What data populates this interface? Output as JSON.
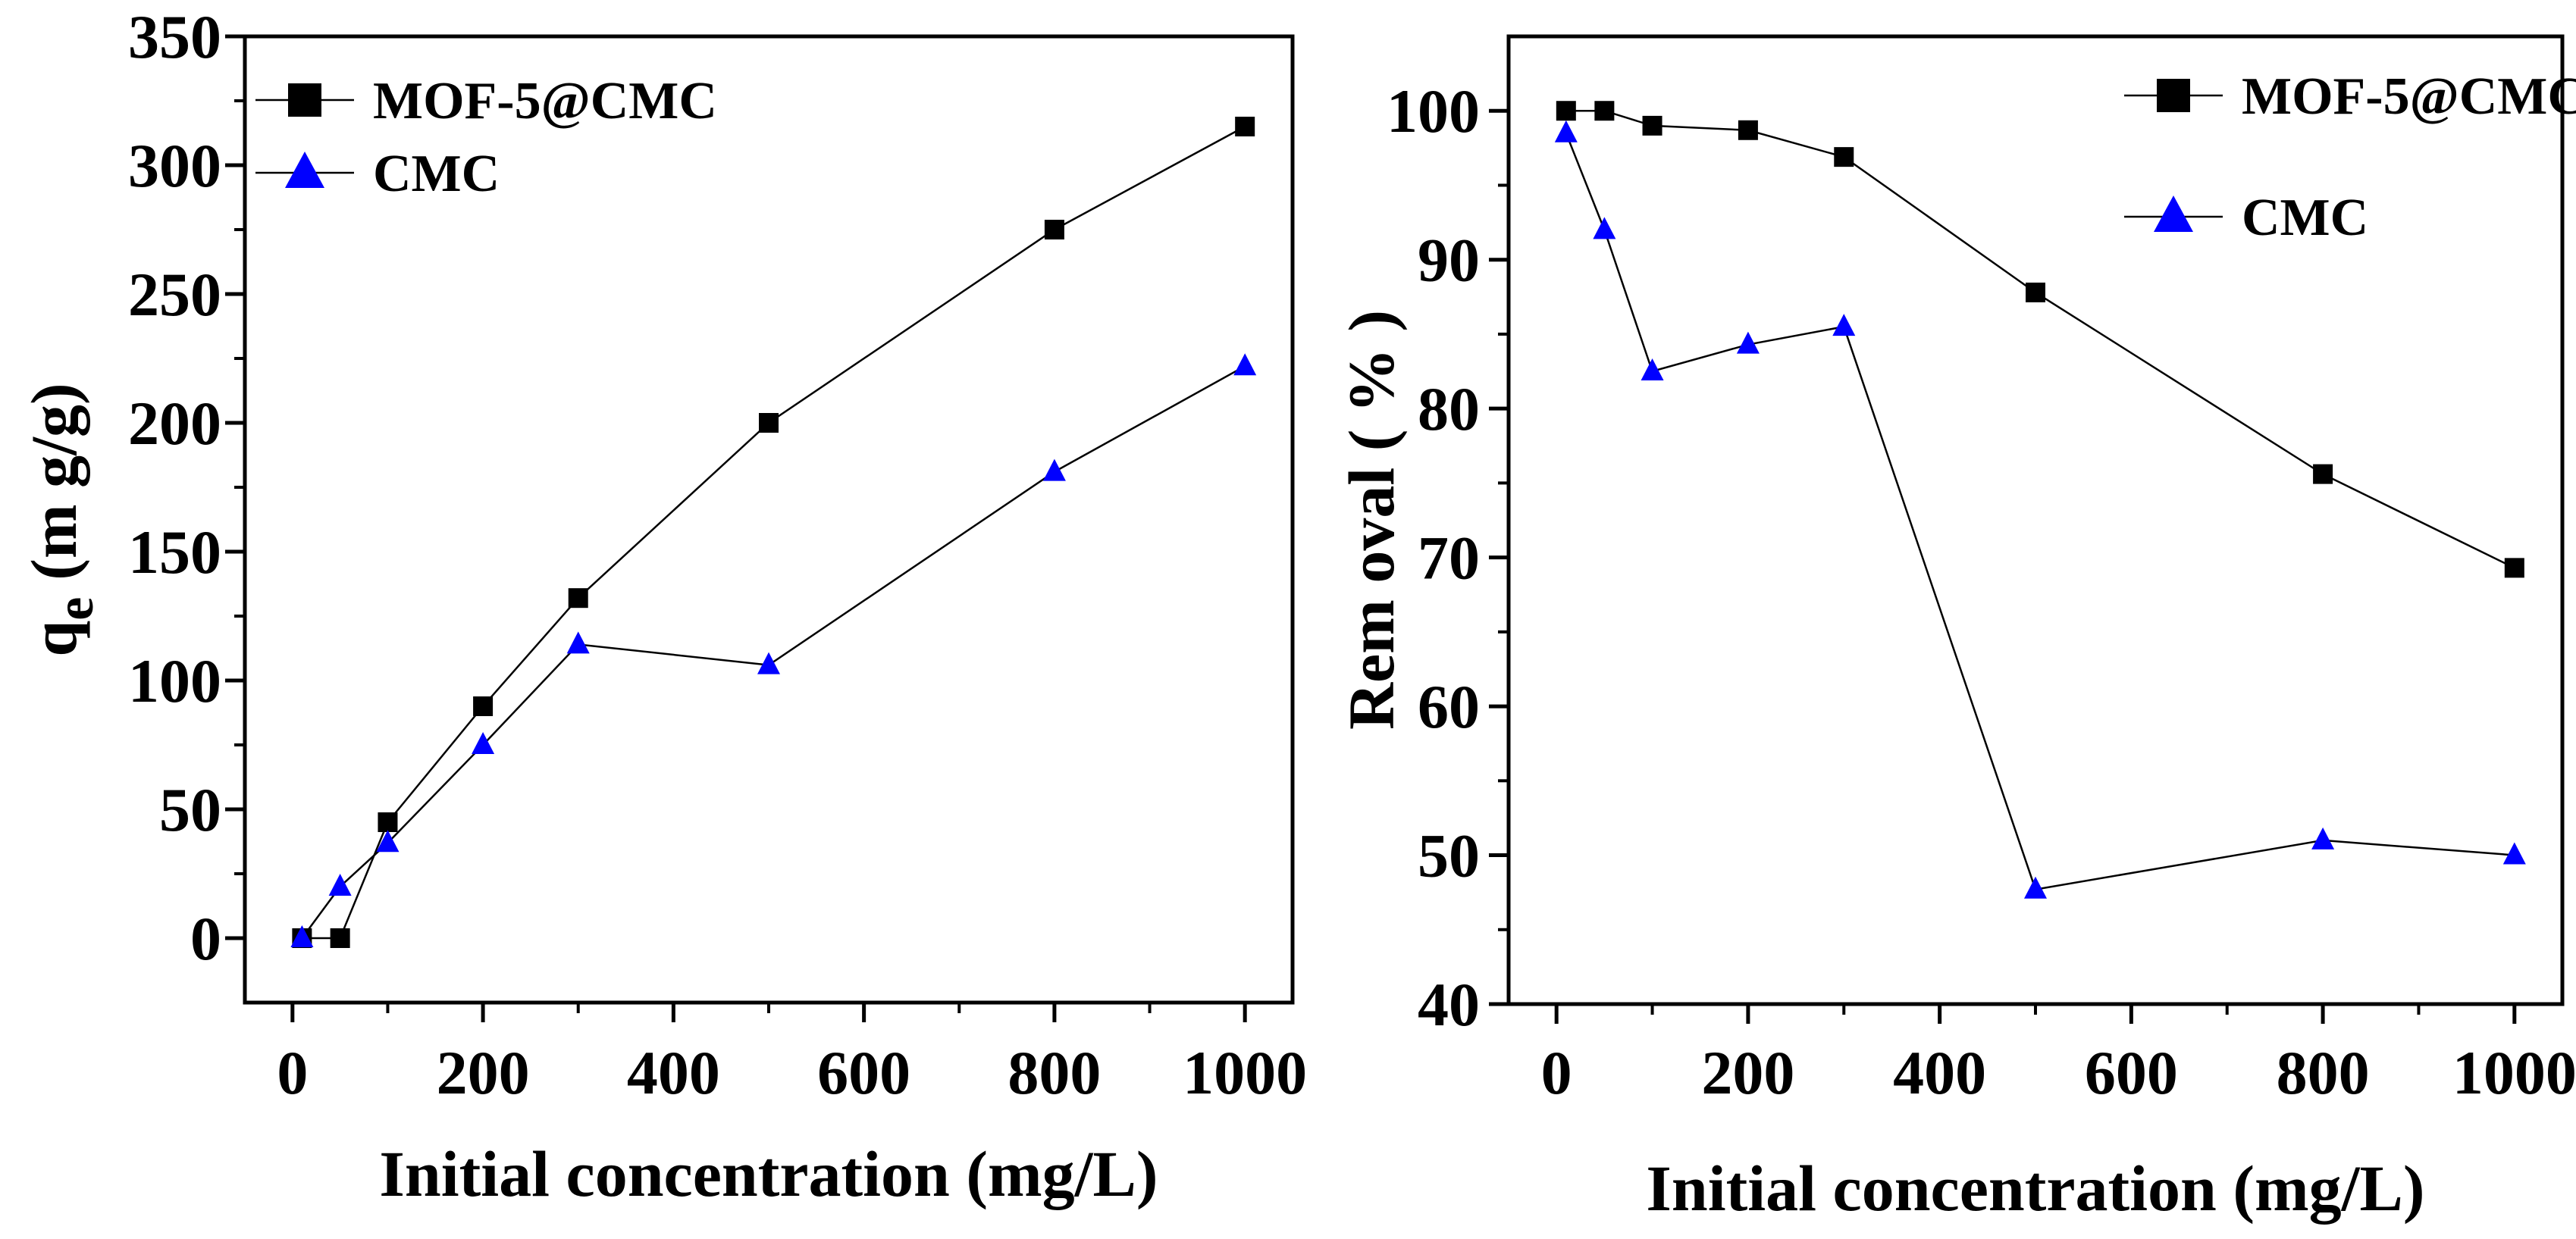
{
  "chart_data": [
    {
      "type": "line",
      "panel": "left",
      "xlabel": "Initial concentration (mg/L)",
      "ylabel": "q",
      "ylabel_subscript": "e",
      "ylabel_units": "(m g/g)",
      "xlim": [
        -50,
        1050
      ],
      "ylim": [
        -25,
        350
      ],
      "xticks": [
        0,
        200,
        400,
        600,
        800,
        1000
      ],
      "xtick_labels": [
        "0",
        "200",
        "400",
        "600",
        "800",
        "1000"
      ],
      "yticks": [
        0,
        50,
        100,
        150,
        200,
        250,
        300,
        350
      ],
      "ytick_labels": [
        "0",
        "50",
        "100",
        "150",
        "200",
        "250",
        "300",
        "350"
      ],
      "legend_position": "top-left",
      "series": [
        {
          "name": "MOF-5@CMC",
          "marker": "square",
          "color": "#000000",
          "x": [
            10,
            50,
            100,
            200,
            300,
            500,
            800,
            1000
          ],
          "y": [
            0,
            0,
            45,
            90,
            132,
            200,
            275,
            315
          ]
        },
        {
          "name": "CMC",
          "marker": "triangle",
          "color": "#0000ff",
          "x": [
            10,
            50,
            100,
            200,
            300,
            500,
            800,
            1000
          ],
          "y": [
            0,
            20,
            37,
            75,
            114,
            106,
            181,
            222
          ]
        }
      ]
    },
    {
      "type": "line",
      "panel": "right",
      "xlabel": "Initial concentration (mg/L)",
      "ylabel": "Rem oval ( % )",
      "xlim": [
        -50,
        1050
      ],
      "ylim": [
        40,
        105
      ],
      "xticks": [
        0,
        200,
        400,
        600,
        800,
        1000
      ],
      "xtick_labels": [
        "0",
        "200",
        "400",
        "600",
        "800",
        "1000"
      ],
      "yticks": [
        40,
        50,
        60,
        70,
        80,
        90,
        100
      ],
      "ytick_labels": [
        "40",
        "50",
        "60",
        "70",
        "80",
        "90",
        "100"
      ],
      "legend_position": "top-right",
      "series": [
        {
          "name": "MOF-5@CMC",
          "marker": "square",
          "color": "#000000",
          "x": [
            10,
            50,
            100,
            200,
            300,
            500,
            800,
            1000
          ],
          "y": [
            100,
            100,
            99,
            98.7,
            96.9,
            87.8,
            75.6,
            69.3
          ]
        },
        {
          "name": "CMC",
          "marker": "triangle",
          "color": "#0000ff",
          "x": [
            10,
            50,
            100,
            200,
            300,
            500,
            800,
            1000
          ],
          "y": [
            98.5,
            92,
            82.5,
            84.3,
            85.5,
            47.7,
            51,
            50
          ]
        }
      ]
    }
  ]
}
